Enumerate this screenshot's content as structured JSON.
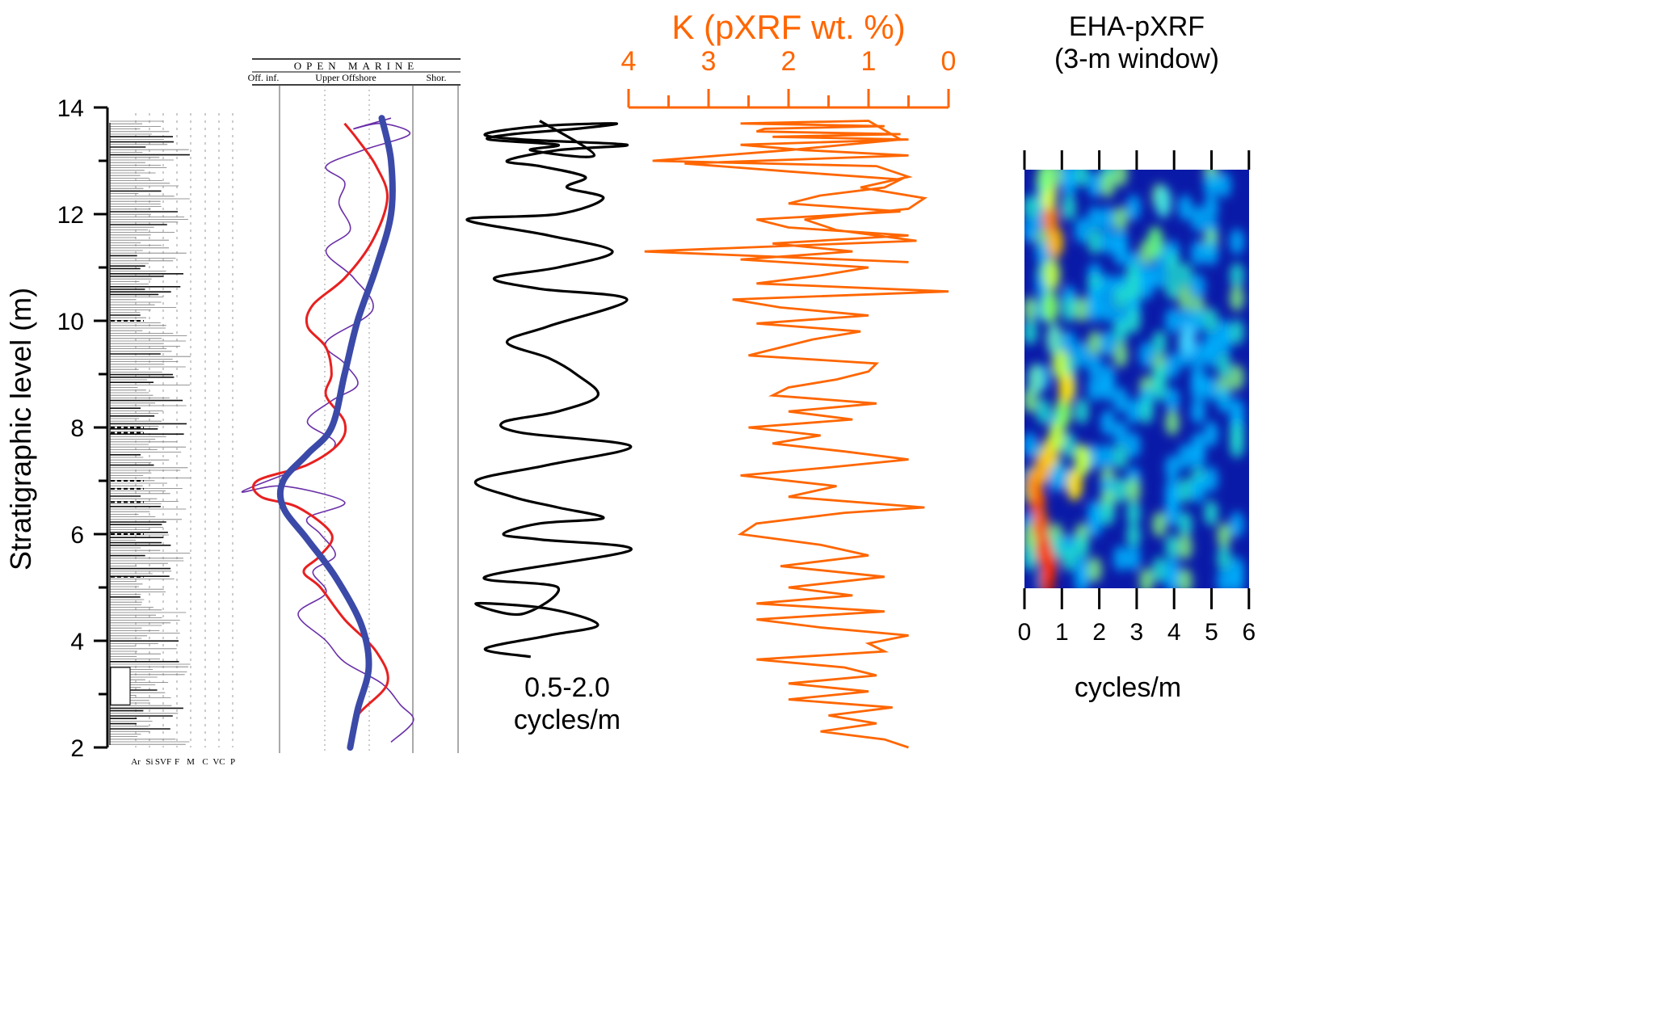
{
  "colors": {
    "black": "#000000",
    "orange": "#ff6600",
    "red": "#e82020",
    "purple": "#6a2fa8",
    "blue": "#3b4aa8",
    "grid": "#9a9a9a"
  },
  "chart_data": [
    {
      "type": "line",
      "title": "",
      "ylabel": "Stratigraphic level (m)",
      "ylim": [
        2,
        14
      ],
      "yticks": [
        "2",
        "4",
        "6",
        "8",
        "10",
        "12",
        "14"
      ],
      "grain_size_labels": [
        "Ar",
        "Si",
        "SVF",
        "F",
        "M",
        "C",
        "VC",
        "P"
      ],
      "description_column": "lithologic log"
    },
    {
      "type": "line",
      "header_top": "OPEN MARINE",
      "header_bottom": [
        "Off. inf.",
        "Upper Offshore",
        "Shor."
      ],
      "series": [
        {
          "color": "purple",
          "style": "thin",
          "x": [
            0.8,
            0.92,
            0.85,
            0.75,
            0.55,
            0.45,
            0.3,
            0.45,
            0.38,
            0.5,
            0.42,
            0.35,
            0.55,
            0.22,
            0.0,
            0.35,
            0.5,
            0.35,
            0.48,
            0.62,
            0.55,
            0.45,
            0.7,
            0.6,
            0.45,
            0.58,
            0.52,
            0.55,
            0.45,
            0.65,
            0.9,
            0.75,
            0.6,
            0.8
          ],
          "y": [
            2.1,
            2.5,
            2.8,
            3.2,
            3.6,
            4.0,
            4.5,
            4.9,
            5.3,
            5.6,
            6.0,
            6.3,
            6.6,
            6.9,
            6.8,
            7.3,
            7.7,
            8.1,
            8.5,
            8.8,
            9.2,
            9.6,
            10.2,
            10.8,
            11.3,
            11.7,
            12.2,
            12.6,
            12.9,
            13.2,
            13.5,
            13.7,
            13.6,
            13.8
          ]
        },
        {
          "color": "red",
          "style": "medium",
          "x": [
            0.58,
            0.62,
            0.78,
            0.72,
            0.55,
            0.42,
            0.33,
            0.42,
            0.48,
            0.3,
            0.1,
            0.08,
            0.35,
            0.52,
            0.55,
            0.45,
            0.48,
            0.45,
            0.35,
            0.38,
            0.55,
            0.7,
            0.78,
            0.72,
            0.62,
            0.55
          ],
          "y": [
            2.1,
            2.6,
            3.2,
            3.8,
            4.4,
            5.0,
            5.3,
            5.6,
            6.0,
            6.5,
            6.7,
            7.0,
            7.3,
            7.7,
            8.1,
            8.6,
            9.0,
            9.5,
            9.9,
            10.3,
            10.8,
            11.5,
            12.3,
            12.9,
            13.4,
            13.7
          ]
        },
        {
          "color": "blue",
          "style": "thick",
          "x": [
            0.58,
            0.62,
            0.68,
            0.64,
            0.5,
            0.35,
            0.22,
            0.22,
            0.35,
            0.48,
            0.55,
            0.62,
            0.72,
            0.8,
            0.8,
            0.75
          ],
          "y": [
            2.0,
            2.7,
            3.5,
            4.3,
            5.2,
            5.9,
            6.5,
            7.0,
            7.5,
            8.0,
            9.0,
            10.0,
            11.0,
            12.0,
            13.0,
            13.8
          ]
        }
      ]
    },
    {
      "type": "line",
      "label": "0.5-2.0\ncycles/m",
      "label_lines": [
        "0.5-2.0",
        "cycles/m"
      ],
      "series": [
        {
          "color": "black",
          "name": "",
          "x": [
            0.35,
            0.1,
            0.45,
            0.72,
            0.45,
            0.05,
            0.3,
            0.5,
            0.1,
            0.9,
            0.4,
            0.2,
            0.4,
            0.75,
            0.5,
            0.25,
            0.05,
            0.45,
            0.9,
            0.3,
            0.2,
            0.5,
            0.72,
            0.6,
            0.45,
            0.22,
            0.45,
            0.88,
            0.4,
            0.15,
            0.5,
            0.8,
            0.45,
            0.0,
            0.5,
            0.75,
            0.55,
            0.65,
            0.4,
            0.22,
            0.5,
            0.88,
            0.3,
            0.1,
            0.4,
            0.82,
            0.6,
            0.25,
            0.12,
            0.5,
            0.35,
            0.7,
            0.4
          ],
          "y": [
            3.7,
            3.85,
            4.1,
            4.3,
            4.6,
            4.7,
            4.5,
            5.0,
            5.2,
            5.7,
            5.9,
            6.0,
            6.2,
            6.3,
            6.5,
            6.7,
            7.0,
            7.3,
            7.65,
            7.9,
            8.1,
            8.3,
            8.6,
            9.0,
            9.3,
            9.6,
            9.9,
            10.4,
            10.6,
            10.8,
            11.0,
            11.3,
            11.6,
            11.9,
            12.0,
            12.3,
            12.5,
            12.7,
            12.9,
            13.0,
            13.2,
            13.3,
            13.4,
            13.5,
            13.65,
            13.7,
            13.6,
            13.5,
            13.4,
            13.3,
            13.2,
            13.1,
            13.75
          ]
        }
      ]
    },
    {
      "type": "line",
      "title": "K (pXRF wt. %)",
      "xlim": [
        4,
        0
      ],
      "xticks": [
        "4",
        "3",
        "2",
        "1",
        "0"
      ],
      "series": [
        {
          "color": "orange",
          "name": "",
          "x": [
            0.5,
            0.8,
            1.6,
            0.9,
            1.5,
            0.7,
            2.0,
            1.0,
            2.0,
            0.9,
            1.3,
            2.4,
            0.8,
            1.0,
            0.5,
            1.6,
            2.4,
            0.8,
            2.4,
            1.2,
            2.0,
            0.8,
            2.1,
            1.0,
            1.6,
            2.6,
            2.4,
            1.3,
            0.3,
            2.0,
            1.4,
            2.6,
            1.5,
            0.5,
            1.3,
            2.2,
            1.6,
            2.5,
            1.2,
            2.0,
            0.9,
            2.2,
            2.0,
            1.4,
            1.0,
            0.9,
            2.5,
            2.1,
            1.7,
            1.1,
            2.4,
            1.0,
            2.1,
            2.7,
            0.0,
            2.4,
            1.6,
            1.0,
            2.6,
            1.2,
            2.2,
            0.5,
            2.0,
            2.4,
            0.6,
            2.0,
            1.6,
            0.8,
            0.6,
            2.0,
            3.3,
            0.5,
            1.8,
            2.6,
            0.5,
            2.2,
            0.6,
            2.4,
            2.3,
            0.8,
            2.6,
            1.0,
            0.6,
            2.0,
            3.7,
            0.9,
            0.5,
            1.1,
            0.3,
            0.5,
            1.8,
            1.4,
            0.4,
            3.8,
            0.5
          ],
          "y": [
            2.0,
            2.15,
            2.3,
            2.45,
            2.6,
            2.75,
            2.9,
            3.05,
            3.2,
            3.35,
            3.5,
            3.65,
            3.8,
            3.95,
            4.1,
            4.25,
            4.4,
            4.55,
            4.7,
            4.85,
            5.0,
            5.2,
            5.4,
            5.6,
            5.8,
            6.0,
            6.2,
            6.4,
            6.5,
            6.7,
            6.9,
            7.1,
            7.25,
            7.4,
            7.55,
            7.7,
            7.85,
            8.0,
            8.15,
            8.3,
            8.45,
            8.6,
            8.75,
            8.9,
            9.05,
            9.2,
            9.35,
            9.5,
            9.65,
            9.8,
            9.95,
            10.1,
            10.25,
            10.4,
            10.55,
            10.7,
            10.85,
            11.0,
            11.15,
            11.3,
            11.45,
            11.6,
            11.75,
            11.9,
            12.05,
            12.2,
            12.35,
            12.5,
            12.65,
            12.8,
            12.95,
            13.1,
            13.2,
            13.3,
            13.4,
            13.45,
            13.5,
            13.55,
            13.6,
            13.65,
            13.7,
            13.75,
            13.4,
            13.2,
            13.0,
            12.9,
            12.7,
            12.5,
            12.3,
            12.1,
            11.9,
            11.7,
            11.5,
            11.3,
            11.1
          ]
        }
      ]
    },
    {
      "type": "heatmap",
      "title": "EHA-pXRF\n(3-m window)",
      "title_lines": [
        "EHA-pXRF",
        "(3-m window)"
      ],
      "xlabel": "cycles/m",
      "xlim": [
        0,
        6
      ],
      "xticks": [
        "0",
        "1",
        "2",
        "3",
        "4",
        "5",
        "6"
      ],
      "ylim": [
        3,
        13
      ]
    }
  ]
}
